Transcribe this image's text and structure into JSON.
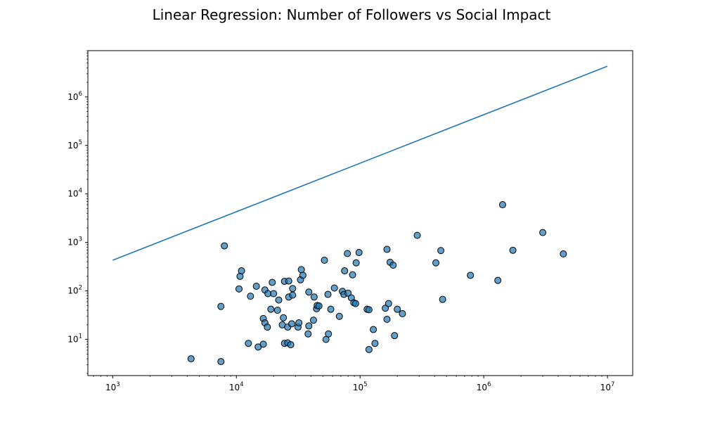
{
  "chart_data": {
    "type": "scatter",
    "title": "Linear Regression: Number of Followers vs Social Impact",
    "xlabel": "",
    "ylabel": "",
    "xscale": "log",
    "yscale": "log",
    "xlim": [
      630,
      16000000
    ],
    "ylim": [
      1.8,
      9000000
    ],
    "grid": false,
    "legend": "none",
    "x_tick_labels": [
      {
        "value": 1000,
        "base": "10",
        "exp": "3"
      },
      {
        "value": 10000,
        "base": "10",
        "exp": "4"
      },
      {
        "value": 100000,
        "base": "10",
        "exp": "5"
      },
      {
        "value": 1000000,
        "base": "10",
        "exp": "6"
      },
      {
        "value": 10000000,
        "base": "10",
        "exp": "7"
      }
    ],
    "y_tick_labels": [
      {
        "value": 10,
        "base": "10",
        "exp": "1"
      },
      {
        "value": 100,
        "base": "10",
        "exp": "2"
      },
      {
        "value": 1000,
        "base": "10",
        "exp": "3"
      },
      {
        "value": 10000,
        "base": "10",
        "exp": "4"
      },
      {
        "value": 100000,
        "base": "10",
        "exp": "5"
      },
      {
        "value": 1000000,
        "base": "10",
        "exp": "6"
      }
    ],
    "colors": {
      "scatter_fill": "#1f77b4",
      "scatter_edge": "#000000",
      "line": "#1f77b4"
    },
    "series": [
      {
        "kind": "scatter",
        "points": [
          [
            4300,
            4
          ],
          [
            7500,
            3.5
          ],
          [
            7500,
            48
          ],
          [
            8000,
            850
          ],
          [
            10500,
            110
          ],
          [
            10700,
            200
          ],
          [
            11000,
            260
          ],
          [
            12500,
            8.3
          ],
          [
            13000,
            78
          ],
          [
            14500,
            125
          ],
          [
            15000,
            7
          ],
          [
            16500,
            8
          ],
          [
            16500,
            27
          ],
          [
            17000,
            22
          ],
          [
            17000,
            105
          ],
          [
            17800,
            18
          ],
          [
            18000,
            88
          ],
          [
            19000,
            42
          ],
          [
            19500,
            150
          ],
          [
            20000,
            88
          ],
          [
            21500,
            40
          ],
          [
            22000,
            65
          ],
          [
            23500,
            20
          ],
          [
            24000,
            28
          ],
          [
            24500,
            8.3
          ],
          [
            24500,
            158
          ],
          [
            26000,
            8.5
          ],
          [
            26000,
            18
          ],
          [
            26500,
            75
          ],
          [
            26500,
            160
          ],
          [
            27500,
            7.8
          ],
          [
            28000,
            21
          ],
          [
            28500,
            82
          ],
          [
            28500,
            112
          ],
          [
            31500,
            18
          ],
          [
            32000,
            22
          ],
          [
            33000,
            170
          ],
          [
            33500,
            275
          ],
          [
            34500,
            210
          ],
          [
            38000,
            13
          ],
          [
            38500,
            19
          ],
          [
            38500,
            95
          ],
          [
            42000,
            25
          ],
          [
            42500,
            75
          ],
          [
            44500,
            43
          ],
          [
            45000,
            50
          ],
          [
            46500,
            49
          ],
          [
            51500,
            430
          ],
          [
            53000,
            10
          ],
          [
            55000,
            85
          ],
          [
            55500,
            13
          ],
          [
            58000,
            42
          ],
          [
            62000,
            115
          ],
          [
            68000,
            30
          ],
          [
            72000,
            98
          ],
          [
            74000,
            85
          ],
          [
            75000,
            260
          ],
          [
            79000,
            590
          ],
          [
            80000,
            90
          ],
          [
            85000,
            72
          ],
          [
            87000,
            215
          ],
          [
            89000,
            57
          ],
          [
            92000,
            55
          ],
          [
            93000,
            380
          ],
          [
            98000,
            620
          ],
          [
            114000,
            42
          ],
          [
            118000,
            6.2
          ],
          [
            118000,
            41
          ],
          [
            128000,
            16
          ],
          [
            132000,
            8.3
          ],
          [
            160000,
            44
          ],
          [
            165000,
            26
          ],
          [
            165000,
            720
          ],
          [
            170000,
            55
          ],
          [
            175000,
            390
          ],
          [
            185000,
            340
          ],
          [
            190000,
            12
          ],
          [
            200000,
            42
          ],
          [
            220000,
            34
          ],
          [
            290000,
            1400
          ],
          [
            410000,
            380
          ],
          [
            450000,
            680
          ],
          [
            465000,
            67
          ],
          [
            780000,
            210
          ],
          [
            1300000,
            165
          ],
          [
            1420000,
            6000
          ],
          [
            1720000,
            690
          ],
          [
            3000000,
            1600
          ],
          [
            4400000,
            580
          ]
        ]
      },
      {
        "kind": "line",
        "points": [
          [
            1000,
            430
          ],
          [
            10000000,
            4300000
          ]
        ]
      }
    ]
  }
}
